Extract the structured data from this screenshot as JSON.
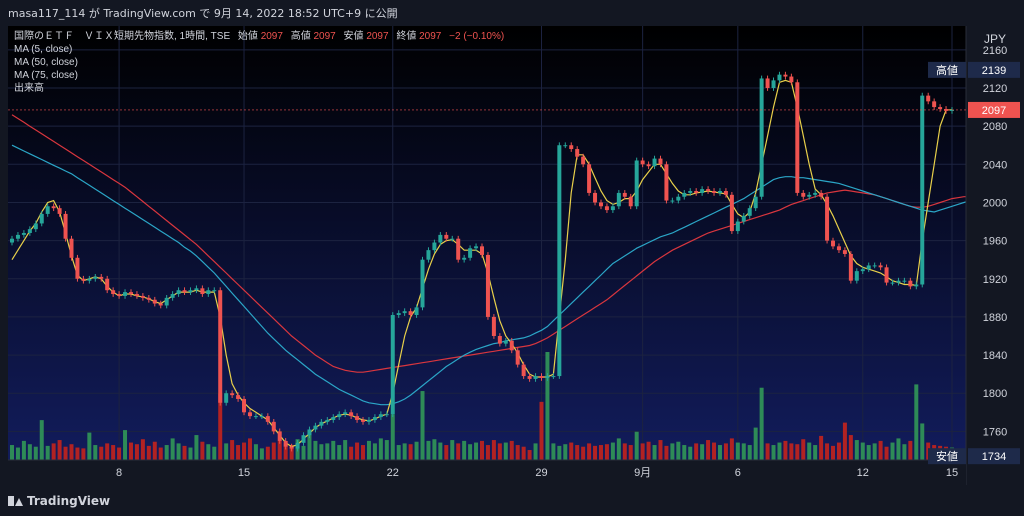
{
  "header": {
    "user": "masa117_114",
    "by": "が",
    "site": "TradingView.com",
    "de": "で",
    "published": "9月 14, 2022 18:52 UTC+9",
    "suffix": "に公開"
  },
  "legend": {
    "symbol": "国際のＥＴＦ　ＶＩＸ短期先物指数, 1時間, TSE",
    "open_label": "始値",
    "open": "2097",
    "high_label": "高値",
    "high": "2097",
    "low_label": "安値",
    "low": "2097",
    "close_label": "終値",
    "close": "2097",
    "change": "−2 (−0.10%)",
    "indicators": [
      "MA (5, close)",
      "MA (50, close)",
      "MA (75, close)",
      "出来高"
    ]
  },
  "footer": {
    "brand": "TradingView"
  },
  "colors": {
    "background_top": "#000000",
    "background_bottom": "#121c5c",
    "up": "#26a69a",
    "down": "#ef5350",
    "vol_up": "#2e8b57",
    "vol_down": "#b22222",
    "ma5": "#e8d04a",
    "ma50": "#2ba6c7",
    "ma75": "#d9363e"
  },
  "chart_data": {
    "type": "candlestick",
    "price_axis": {
      "unit": "JPY",
      "ticks": [
        1760,
        1800,
        1840,
        1880,
        1920,
        1960,
        2000,
        2040,
        2080,
        2120,
        2160
      ],
      "ylim": [
        1730,
        2185
      ]
    },
    "time_axis": {
      "labels": [
        {
          "label": "8",
          "idx": 18
        },
        {
          "label": "15",
          "idx": 39
        },
        {
          "label": "22",
          "idx": 64
        },
        {
          "label": "29",
          "idx": 89
        },
        {
          "label": "9月",
          "idx": 106
        },
        {
          "label": "6",
          "idx": 122
        },
        {
          "label": "12",
          "idx": 143
        },
        {
          "label": "15",
          "idx": 158
        }
      ]
    },
    "badges": [
      {
        "label": "高値",
        "value": "2139",
        "price": 2139
      },
      {
        "label": "",
        "value": "2097",
        "price": 2097
      },
      {
        "label": "安値",
        "value": "1734",
        "price": 1734
      }
    ],
    "closes": [
      1962,
      1966,
      1968,
      1972,
      1978,
      1988,
      1996,
      1994,
      1988,
      1962,
      1942,
      1920,
      1918,
      1920,
      1922,
      1920,
      1908,
      1904,
      1902,
      1906,
      1904,
      1902,
      1900,
      1898,
      1894,
      1892,
      1900,
      1904,
      1908,
      1906,
      1908,
      1910,
      1904,
      1908,
      1908,
      1790,
      1800,
      1798,
      1794,
      1780,
      1776,
      1776,
      1776,
      1770,
      1760,
      1750,
      1744,
      1742,
      1748,
      1756,
      1762,
      1766,
      1770,
      1772,
      1775,
      1778,
      1780,
      1776,
      1772,
      1770,
      1772,
      1775,
      1778,
      1778,
      1882,
      1884,
      1886,
      1882,
      1890,
      1940,
      1950,
      1958,
      1966,
      1962,
      1962,
      1940,
      1942,
      1952,
      1954,
      1945,
      1880,
      1860,
      1852,
      1855,
      1845,
      1830,
      1818,
      1815,
      1818,
      1816,
      1818,
      1818,
      2060,
      2060,
      2056,
      2048,
      2040,
      2010,
      2000,
      1996,
      1992,
      1996,
      2010,
      2006,
      1996,
      2044,
      2040,
      2038,
      2046,
      2040,
      2002,
      2002,
      2006,
      2010,
      2012,
      2010,
      2014,
      2012,
      2010,
      2012,
      2008,
      1970,
      1980,
      1986,
      1994,
      2006,
      2130,
      2120,
      2128,
      2134,
      2132,
      2126,
      2010,
      2006,
      2008,
      2010,
      2006,
      1960,
      1954,
      1950,
      1946,
      1918,
      1928,
      1930,
      1934,
      1934,
      1932,
      1916,
      1916,
      1918,
      1918,
      1912,
      1914,
      2112,
      2106,
      2100,
      2098,
      2096,
      2097
    ],
    "volumes": [
      180,
      150,
      230,
      190,
      160,
      480,
      170,
      200,
      240,
      160,
      190,
      150,
      140,
      330,
      180,
      160,
      200,
      180,
      150,
      360,
      210,
      190,
      250,
      170,
      220,
      150,
      180,
      260,
      200,
      170,
      150,
      300,
      220,
      190,
      160,
      800,
      200,
      240,
      180,
      210,
      260,
      190,
      140,
      160,
      210,
      230,
      200,
      180,
      250,
      170,
      320,
      230,
      190,
      200,
      230,
      180,
      240,
      160,
      210,
      180,
      230,
      200,
      260,
      240,
      550,
      180,
      200,
      190,
      220,
      830,
      230,
      250,
      210,
      180,
      240,
      200,
      230,
      190,
      210,
      230,
      180,
      240,
      200,
      210,
      230,
      180,
      160,
      120,
      200,
      700,
      1300,
      200,
      170,
      190,
      210,
      180,
      160,
      200,
      170,
      180,
      190,
      210,
      260,
      200,
      180,
      340,
      200,
      220,
      180,
      240,
      170,
      200,
      220,
      180,
      160,
      200,
      190,
      240,
      210,
      180,
      200,
      260,
      210,
      200,
      180,
      390,
      870,
      200,
      180,
      210,
      230,
      200,
      190,
      250,
      210,
      180,
      290,
      200,
      170,
      210,
      450,
      300,
      240,
      210,
      180,
      200,
      230,
      160,
      210,
      260,
      190,
      230,
      910,
      440,
      210,
      180,
      170,
      160,
      150
    ],
    "ma5": [
      1940,
      1950,
      1960,
      1970,
      1978,
      1990,
      2000,
      2002,
      1990,
      1968,
      1944,
      1924,
      1918,
      1920,
      1922,
      1920,
      1912,
      1906,
      1902,
      1904,
      1904,
      1902,
      1901,
      1899,
      1896,
      1894,
      1898,
      1902,
      1906,
      1906,
      1906,
      1908,
      1906,
      1906,
      1906,
      1880,
      1840,
      1810,
      1798,
      1790,
      1784,
      1780,
      1776,
      1772,
      1764,
      1756,
      1748,
      1744,
      1746,
      1752,
      1758,
      1764,
      1768,
      1771,
      1774,
      1777,
      1778,
      1777,
      1774,
      1772,
      1771,
      1773,
      1776,
      1778,
      1800,
      1830,
      1860,
      1880,
      1890,
      1910,
      1930,
      1946,
      1956,
      1960,
      1961,
      1956,
      1950,
      1950,
      1950,
      1946,
      1926,
      1900,
      1876,
      1860,
      1852,
      1842,
      1830,
      1820,
      1817,
      1817,
      1817,
      1820,
      1880,
      1940,
      2010,
      2050,
      2050,
      2040,
      2026,
      2012,
      2002,
      1998,
      2000,
      2004,
      2004,
      2012,
      2024,
      2032,
      2040,
      2040,
      2030,
      2020,
      2012,
      2008,
      2008,
      2010,
      2011,
      2012,
      2011,
      2010,
      2009,
      1998,
      1988,
      1984,
      1990,
      2010,
      2040,
      2070,
      2100,
      2126,
      2128,
      2126,
      2100,
      2070,
      2040,
      2014,
      2008,
      1998,
      1986,
      1972,
      1958,
      1944,
      1936,
      1932,
      1930,
      1928,
      1926,
      1922,
      1918,
      1916,
      1914,
      1914,
      1913,
      1960,
      2000,
      2040,
      2080,
      2097,
      2097
    ],
    "ma50": [
      2060,
      2057,
      2054,
      2051,
      2048,
      2045,
      2042,
      2039,
      2036,
      2033,
      2030,
      2026,
      2022,
      2018,
      2014,
      2010,
      2006,
      2002,
      1998,
      1994,
      1990,
      1986,
      1982,
      1978,
      1974,
      1970,
      1966,
      1962,
      1958,
      1953,
      1949,
      1944,
      1938,
      1932,
      1926,
      1919,
      1912,
      1905,
      1898,
      1891,
      1884,
      1877,
      1870,
      1863,
      1857,
      1851,
      1845,
      1840,
      1835,
      1830,
      1825,
      1820,
      1816,
      1812,
      1808,
      1804,
      1801,
      1798,
      1795,
      1792,
      1790,
      1789,
      1788,
      1788,
      1789,
      1791,
      1794,
      1798,
      1803,
      1808,
      1813,
      1818,
      1823,
      1828,
      1832,
      1836,
      1840,
      1843,
      1846,
      1848,
      1850,
      1852,
      1853,
      1855,
      1856,
      1857,
      1858,
      1860,
      1863,
      1866,
      1870,
      1876,
      1882,
      1888,
      1894,
      1900,
      1906,
      1912,
      1918,
      1924,
      1930,
      1936,
      1940,
      1944,
      1948,
      1952,
      1955,
      1958,
      1961,
      1964,
      1966,
      1968,
      1971,
      1974,
      1977,
      1980,
      1983,
      1986,
      1989,
      1992,
      1995,
      1998,
      2001,
      2004,
      2008,
      2012,
      2016,
      2020,
      2024,
      2026,
      2027,
      2027,
      2026,
      2026,
      2025,
      2024,
      2023,
      2022,
      2021,
      2020,
      2018,
      2016,
      2014,
      2012,
      2010,
      2008,
      2006,
      2004,
      2002,
      2000,
      1998,
      1996,
      1994,
      1992,
      1991,
      1990,
      1992,
      1994,
      1996,
      1998,
      2000,
      2002
    ],
    "ma75": [
      2092,
      2088,
      2084,
      2080,
      2076,
      2072,
      2068,
      2064,
      2060,
      2056,
      2052,
      2048,
      2044,
      2040,
      2036,
      2032,
      2028,
      2024,
      2020,
      2016,
      2011,
      2006,
      2001,
      1996,
      1991,
      1986,
      1981,
      1976,
      1971,
      1966,
      1961,
      1956,
      1950,
      1944,
      1938,
      1932,
      1926,
      1920,
      1914,
      1908,
      1902,
      1896,
      1890,
      1884,
      1878,
      1872,
      1866,
      1860,
      1855,
      1850,
      1845,
      1840,
      1836,
      1832,
      1828,
      1826,
      1824,
      1823,
      1822,
      1822,
      1823,
      1824,
      1825,
      1826,
      1827,
      1828,
      1829,
      1830,
      1831,
      1832,
      1833,
      1834,
      1835,
      1836,
      1837,
      1838,
      1839,
      1840,
      1841,
      1842,
      1843,
      1844,
      1845,
      1846,
      1847,
      1848,
      1849,
      1850,
      1852,
      1855,
      1858,
      1862,
      1866,
      1870,
      1874,
      1878,
      1882,
      1886,
      1890,
      1894,
      1898,
      1903,
      1908,
      1913,
      1918,
      1923,
      1928,
      1933,
      1938,
      1942,
      1946,
      1950,
      1953,
      1956,
      1959,
      1962,
      1965,
      1968,
      1970,
      1972,
      1974,
      1976,
      1978,
      1980,
      1982,
      1984,
      1986,
      1988,
      1990,
      1992,
      1995,
      1998,
      2000,
      2002,
      2004,
      2006,
      2008,
      2010,
      2011,
      2012,
      2013,
      2012,
      2011,
      2010,
      2009,
      2008,
      2006,
      2004,
      2002,
      2000,
      1998,
      1996,
      1995,
      1995,
      1996,
      1998,
      2000,
      2002,
      2004,
      2005,
      2006,
      2006
    ]
  }
}
